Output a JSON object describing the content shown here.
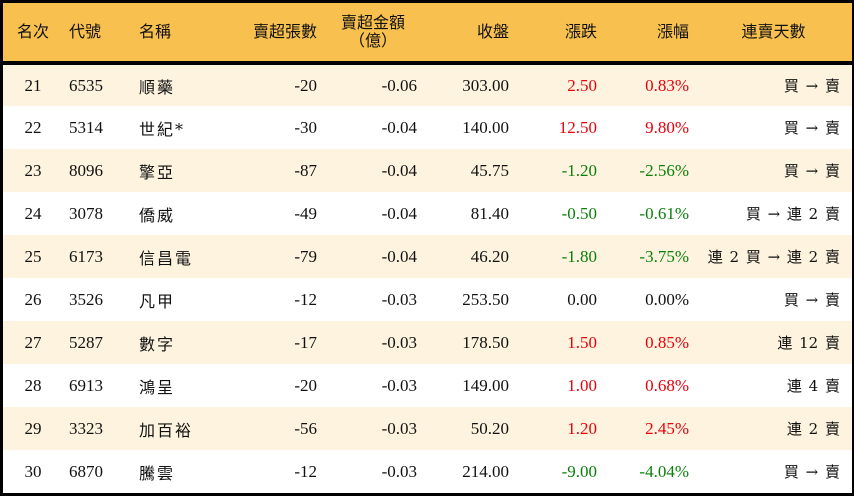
{
  "colors": {
    "header_bg": "#F8C04E",
    "row_alt_bg": "#FDF3DE",
    "row_bg": "#FFFFFF",
    "up": "#E8000B",
    "down": "#0A7F0A",
    "border": "#000000"
  },
  "table": {
    "headers": {
      "rank": "名次",
      "code": "代號",
      "name": "名稱",
      "net_sell_shares": "賣超張數",
      "net_sell_amount_line1": "賣超金額",
      "net_sell_amount_line2": "（億）",
      "close": "收盤",
      "change": "漲跌",
      "change_pct": "漲幅",
      "streak": "連賣天數"
    },
    "rows": [
      {
        "rank": "21",
        "code": "6535",
        "name": "順藥",
        "shares": "-20",
        "amount": "-0.06",
        "close": "303.00",
        "change": "2.50",
        "pct": "0.83%",
        "dir": "up",
        "streak": "買 → 賣"
      },
      {
        "rank": "22",
        "code": "5314",
        "name": "世紀*",
        "shares": "-30",
        "amount": "-0.04",
        "close": "140.00",
        "change": "12.50",
        "pct": "9.80%",
        "dir": "up",
        "streak": "買 → 賣"
      },
      {
        "rank": "23",
        "code": "8096",
        "name": "擎亞",
        "shares": "-87",
        "amount": "-0.04",
        "close": "45.75",
        "change": "-1.20",
        "pct": "-2.56%",
        "dir": "down",
        "streak": "買 → 賣"
      },
      {
        "rank": "24",
        "code": "3078",
        "name": "僑威",
        "shares": "-49",
        "amount": "-0.04",
        "close": "81.40",
        "change": "-0.50",
        "pct": "-0.61%",
        "dir": "down",
        "streak": "買 → 連 2 賣"
      },
      {
        "rank": "25",
        "code": "6173",
        "name": "信昌電",
        "shares": "-79",
        "amount": "-0.04",
        "close": "46.20",
        "change": "-1.80",
        "pct": "-3.75%",
        "dir": "down",
        "streak": "連 2 買 → 連 2 賣"
      },
      {
        "rank": "26",
        "code": "3526",
        "name": "凡甲",
        "shares": "-12",
        "amount": "-0.03",
        "close": "253.50",
        "change": "0.00",
        "pct": "0.00%",
        "dir": "flat",
        "streak": "買 → 賣"
      },
      {
        "rank": "27",
        "code": "5287",
        "name": "數字",
        "shares": "-17",
        "amount": "-0.03",
        "close": "178.50",
        "change": "1.50",
        "pct": "0.85%",
        "dir": "up",
        "streak": "連 12 賣"
      },
      {
        "rank": "28",
        "code": "6913",
        "name": "鴻呈",
        "shares": "-20",
        "amount": "-0.03",
        "close": "149.00",
        "change": "1.00",
        "pct": "0.68%",
        "dir": "up",
        "streak": "連 4 賣"
      },
      {
        "rank": "29",
        "code": "3323",
        "name": "加百裕",
        "shares": "-56",
        "amount": "-0.03",
        "close": "50.20",
        "change": "1.20",
        "pct": "2.45%",
        "dir": "up",
        "streak": "連 2 賣"
      },
      {
        "rank": "30",
        "code": "6870",
        "name": "騰雲",
        "shares": "-12",
        "amount": "-0.03",
        "close": "214.00",
        "change": "-9.00",
        "pct": "-4.04%",
        "dir": "down",
        "streak": "買 → 賣"
      }
    ]
  }
}
